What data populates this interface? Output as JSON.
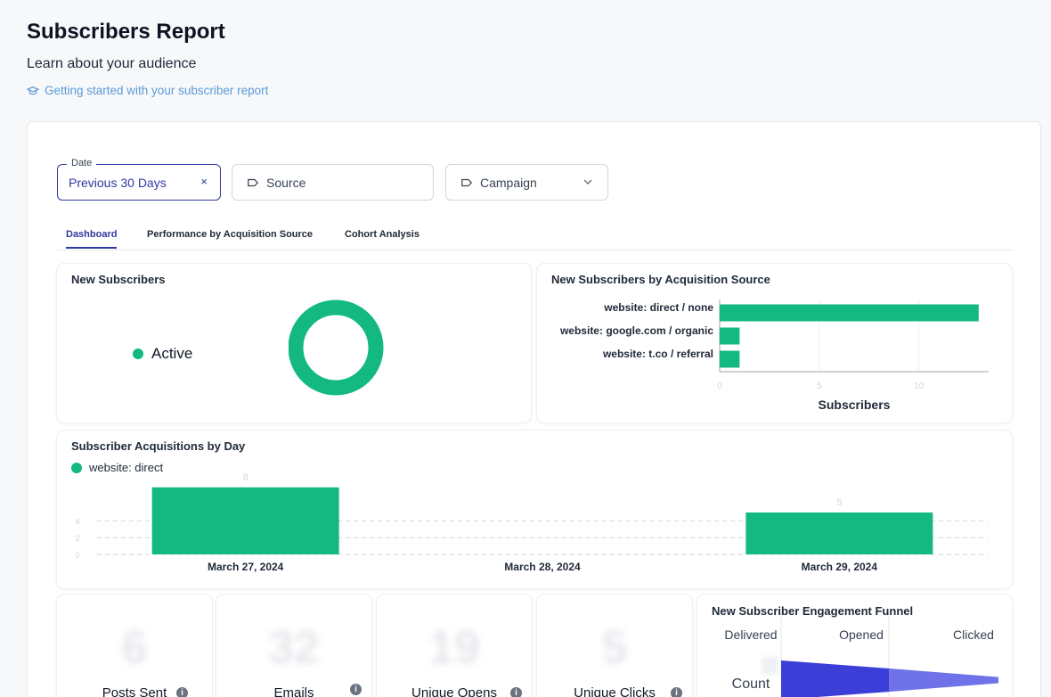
{
  "header": {
    "title": "Subscribers Report",
    "subtitle": "Learn about your audience",
    "help_link": "Getting started with your subscriber report"
  },
  "filters": {
    "date": {
      "legend": "Date",
      "value": "Previous 30 Days",
      "clear": "×"
    },
    "source": {
      "placeholder": "Source"
    },
    "campaign": {
      "placeholder": "Campaign"
    }
  },
  "tabs": [
    {
      "label": "Dashboard",
      "active": true
    },
    {
      "label": "Performance by Acquisition Source",
      "active": false
    },
    {
      "label": "Cohort Analysis",
      "active": false
    }
  ],
  "panels": {
    "new_subscribers": {
      "title": "New Subscribers",
      "legend": "Active"
    },
    "by_source": {
      "title": "New Subscribers by Acquisition Source"
    },
    "by_day": {
      "title": "Subscriber Acquisitions by Day",
      "legend": "website: direct"
    },
    "funnel": {
      "title": "New Subscriber Engagement Funnel",
      "columns": [
        "Delivered",
        "Opened",
        "Clicked"
      ],
      "row_label": "Count"
    }
  },
  "stats": [
    {
      "label": "Posts Sent",
      "value": "6"
    },
    {
      "label": "Emails",
      "value": "32"
    },
    {
      "label": "Unique Opens",
      "value": "19"
    },
    {
      "label": "Unique Clicks",
      "value": "5"
    }
  ],
  "colors": {
    "accent": "#2d3a9f",
    "green": "#13b981",
    "link": "#5a9bd8",
    "funnel": "#3b3fd8"
  },
  "chart_data": [
    {
      "type": "pie",
      "labels": [
        "Active"
      ],
      "values": [
        1
      ]
    },
    {
      "type": "bar",
      "orientation": "horizontal",
      "ylabel": "Acquisition Source",
      "xlabel": "Subscribers",
      "categories": [
        "website: direct / none",
        "website: google.com / organic",
        "website: t.co / referral"
      ],
      "values": [
        13,
        1,
        1
      ],
      "xticks": [
        0,
        5,
        10
      ],
      "xlim": [
        0,
        13.5
      ]
    },
    {
      "type": "bar",
      "categories": [
        "March 27, 2024",
        "March 28, 2024",
        "March 29, 2024"
      ],
      "series": [
        {
          "name": "website: direct",
          "values": [
            8,
            0,
            5
          ]
        }
      ],
      "data_labels": [
        "8",
        "",
        "5"
      ],
      "yticks": [
        0,
        2,
        4
      ],
      "ylim": [
        0,
        8.4
      ]
    },
    {
      "type": "bar",
      "categories": [
        "Delivered",
        "Opened",
        "Clicked"
      ],
      "values": [
        32,
        19,
        5
      ]
    }
  ]
}
